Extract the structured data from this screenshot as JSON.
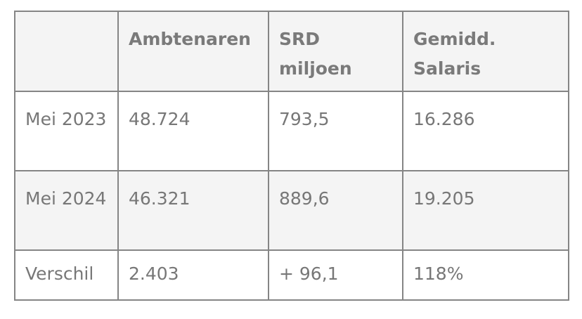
{
  "table": {
    "headers": [
      "",
      "Ambtenaren",
      "SRD miljoen",
      "Gemidd. Salaris"
    ],
    "rows": [
      [
        "Mei 2023",
        "48.724",
        "793,5",
        "16.286"
      ],
      [
        "Mei 2024",
        "46.321",
        "889,6",
        "19.205"
      ],
      [
        "Verschil",
        "2.403",
        "+ 96,1",
        "118%"
      ]
    ]
  }
}
